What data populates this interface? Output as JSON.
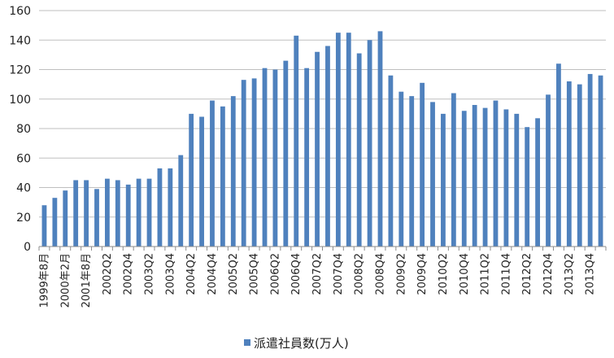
{
  "chart_data": {
    "type": "bar",
    "ylim": [
      0,
      160
    ],
    "y_ticks": [
      0,
      20,
      40,
      60,
      80,
      100,
      120,
      140,
      160
    ],
    "grid": true,
    "legend_position": "bottom",
    "bar_color": "#4F81BD",
    "categories": [
      "1999年8月",
      "",
      "2000年2月",
      "",
      "2001年8月",
      "",
      "2002Q2",
      "",
      "2002Q4",
      "",
      "2003Q2",
      "",
      "2003Q4",
      "",
      "2004Q2",
      "",
      "2004Q4",
      "",
      "2005Q2",
      "",
      "2005Q4",
      "",
      "2006Q2",
      "",
      "2006Q4",
      "",
      "2007Q2",
      "",
      "2007Q4",
      "",
      "2008Q2",
      "",
      "2008Q4",
      "",
      "2009Q2",
      "",
      "2009Q4",
      "",
      "2010Q2",
      "",
      "2010Q4",
      "",
      "2011Q2",
      "",
      "2011Q4",
      "",
      "2012Q2",
      "",
      "2012Q4",
      "",
      "2013Q2",
      "",
      "2013Q4",
      ""
    ],
    "series": [
      {
        "name": "派遣社員数(万人)",
        "values": [
          28,
          33,
          38,
          45,
          45,
          39,
          46,
          45,
          42,
          46,
          46,
          53,
          53,
          62,
          90,
          88,
          99,
          95,
          102,
          113,
          114,
          121,
          120,
          126,
          143,
          121,
          132,
          136,
          145,
          145,
          131,
          140,
          146,
          116,
          105,
          102,
          111,
          98,
          90,
          104,
          92,
          96,
          94,
          99,
          93,
          90,
          81,
          87,
          103,
          124,
          112,
          110,
          117,
          116
        ]
      }
    ]
  }
}
